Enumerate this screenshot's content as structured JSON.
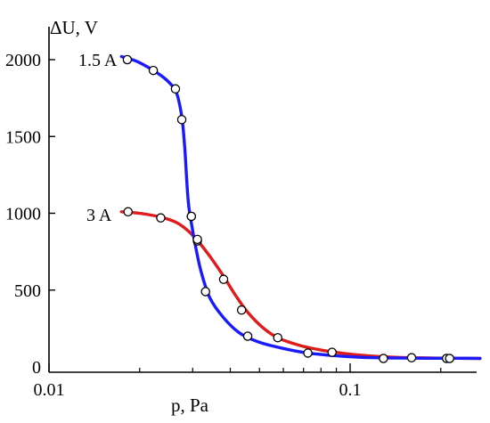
{
  "chart_data": {
    "type": "line",
    "xlabel": "p, Pa",
    "ylabel": "ΔU, V",
    "x_scale": "log",
    "xlim": [
      0.01,
      0.3
    ],
    "ylim": [
      0,
      2100
    ],
    "grid": false,
    "x_ticks": [
      {
        "value": 0.01,
        "label": "0.01"
      },
      {
        "value": 0.1,
        "label": "0.1"
      }
    ],
    "y_ticks": [
      {
        "value": 0,
        "label": "0"
      },
      {
        "value": 500,
        "label": "500"
      },
      {
        "value": 1000,
        "label": "1000"
      },
      {
        "value": 1500,
        "label": "1500"
      },
      {
        "value": 2000,
        "label": "2000"
      }
    ],
    "series": [
      {
        "name": "1.5 A",
        "color": "#1a1aff",
        "points": [
          {
            "x": 0.0182,
            "y": 2000
          },
          {
            "x": 0.0222,
            "y": 1930
          },
          {
            "x": 0.0263,
            "y": 1810
          },
          {
            "x": 0.0276,
            "y": 1610
          },
          {
            "x": 0.0297,
            "y": 980
          },
          {
            "x": 0.0311,
            "y": 820
          },
          {
            "x": 0.0331,
            "y": 490
          },
          {
            "x": 0.0457,
            "y": 200
          },
          {
            "x": 0.0724,
            "y": 90
          },
          {
            "x": 0.129,
            "y": 55
          },
          {
            "x": 0.209,
            "y": 55
          }
        ],
        "curve": [
          [
            0.0174,
            2020
          ],
          [
            0.0195,
            1990
          ],
          [
            0.0222,
            1930
          ],
          [
            0.0245,
            1870
          ],
          [
            0.0263,
            1800
          ],
          [
            0.0272,
            1700
          ],
          [
            0.0278,
            1580
          ],
          [
            0.0283,
            1400
          ],
          [
            0.0287,
            1200
          ],
          [
            0.0291,
            1050
          ],
          [
            0.0298,
            920
          ],
          [
            0.0307,
            780
          ],
          [
            0.032,
            620
          ],
          [
            0.0342,
            450
          ],
          [
            0.038,
            320
          ],
          [
            0.043,
            220
          ],
          [
            0.05,
            160
          ],
          [
            0.06,
            120
          ],
          [
            0.0724,
            90
          ],
          [
            0.09,
            72
          ],
          [
            0.11,
            62
          ],
          [
            0.14,
            58
          ],
          [
            0.18,
            56
          ],
          [
            0.24,
            56
          ],
          [
            0.27,
            55
          ]
        ]
      },
      {
        "name": "3 A",
        "color": "#e01b1b",
        "points": [
          {
            "x": 0.0183,
            "y": 1010
          },
          {
            "x": 0.0235,
            "y": 970
          },
          {
            "x": 0.0297,
            "y": 980
          },
          {
            "x": 0.0311,
            "y": 830
          },
          {
            "x": 0.038,
            "y": 570
          },
          {
            "x": 0.0436,
            "y": 370
          },
          {
            "x": 0.0575,
            "y": 190
          },
          {
            "x": 0.0871,
            "y": 95
          },
          {
            "x": 0.16,
            "y": 60
          },
          {
            "x": 0.214,
            "y": 55
          }
        ],
        "curve": [
          [
            0.0174,
            1010
          ],
          [
            0.02,
            1000
          ],
          [
            0.0235,
            975
          ],
          [
            0.0265,
            940
          ],
          [
            0.029,
            885
          ],
          [
            0.0315,
            810
          ],
          [
            0.0345,
            710
          ],
          [
            0.038,
            590
          ],
          [
            0.0415,
            470
          ],
          [
            0.0455,
            360
          ],
          [
            0.051,
            260
          ],
          [
            0.0575,
            190
          ],
          [
            0.068,
            140
          ],
          [
            0.08,
            110
          ],
          [
            0.095,
            88
          ],
          [
            0.115,
            72
          ],
          [
            0.145,
            62
          ],
          [
            0.185,
            58
          ],
          [
            0.23,
            56
          ],
          [
            0.27,
            55
          ]
        ]
      }
    ]
  }
}
